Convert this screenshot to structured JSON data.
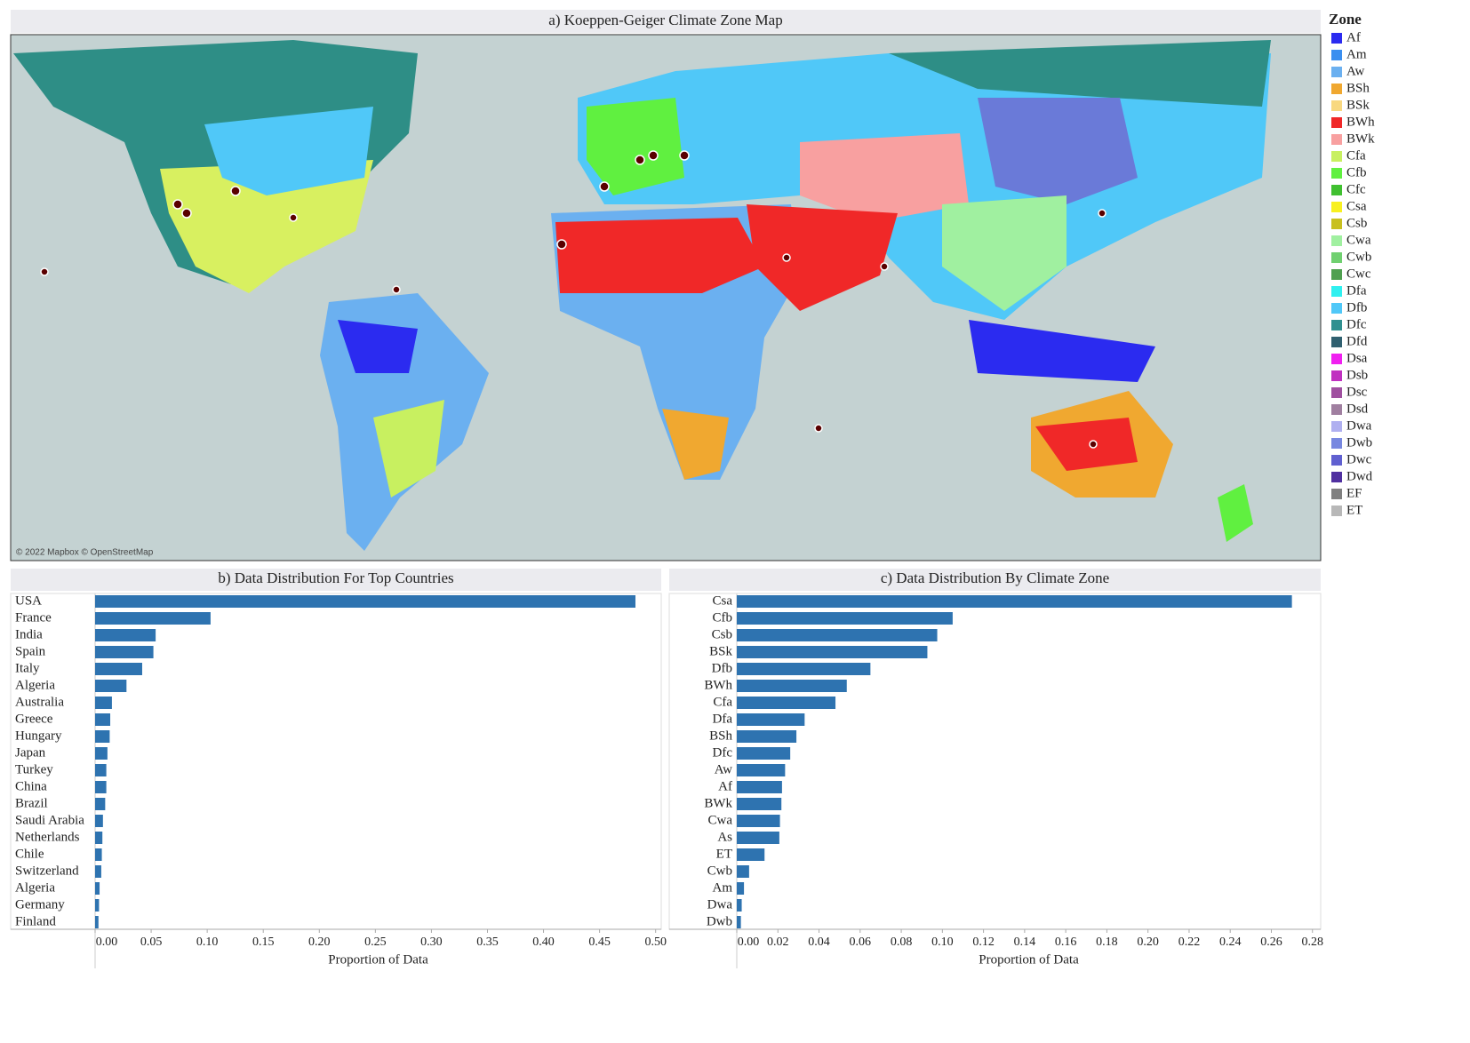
{
  "map": {
    "title": "a) Koeppen-Geiger Climate Zone Map",
    "attribution": "© 2022 Mapbox © OpenStreetMap",
    "legend_title": "Zone",
    "legend": [
      {
        "name": "Af",
        "color": "#2b2bf0"
      },
      {
        "name": "Am",
        "color": "#3b8ff0"
      },
      {
        "name": "Aw",
        "color": "#6bb0f0"
      },
      {
        "name": "BSh",
        "color": "#f0a830"
      },
      {
        "name": "BSk",
        "color": "#f8d880"
      },
      {
        "name": "BWh",
        "color": "#f02828"
      },
      {
        "name": "BWk",
        "color": "#f8a0a0"
      },
      {
        "name": "Cfa",
        "color": "#c8f060"
      },
      {
        "name": "Cfb",
        "color": "#60f040"
      },
      {
        "name": "Cfc",
        "color": "#40c030"
      },
      {
        "name": "Csa",
        "color": "#f8f020"
      },
      {
        "name": "Csb",
        "color": "#c8c020"
      },
      {
        "name": "Cwa",
        "color": "#a0f0a0"
      },
      {
        "name": "Cwb",
        "color": "#70d070"
      },
      {
        "name": "Cwc",
        "color": "#50a050"
      },
      {
        "name": "Dfa",
        "color": "#30f0f0"
      },
      {
        "name": "Dfb",
        "color": "#50c8f8"
      },
      {
        "name": "Dfc",
        "color": "#309090"
      },
      {
        "name": "Dfd",
        "color": "#306070"
      },
      {
        "name": "Dsa",
        "color": "#f020f0"
      },
      {
        "name": "Dsb",
        "color": "#c030c0"
      },
      {
        "name": "Dsc",
        "color": "#a050a0"
      },
      {
        "name": "Dsd",
        "color": "#a07fa0"
      },
      {
        "name": "Dwa",
        "color": "#b0b0f0"
      },
      {
        "name": "Dwb",
        "color": "#7888e0"
      },
      {
        "name": "Dwc",
        "color": "#6060d0"
      },
      {
        "name": "Dwd",
        "color": "#5030a0"
      },
      {
        "name": "EF",
        "color": "#808080"
      },
      {
        "name": "ET",
        "color": "#b8b8b8"
      }
    ]
  },
  "chart_data": [
    {
      "type": "hbar",
      "title": "b) Data Distribution For Top Countries",
      "x_label": "Proportion of Data",
      "color": "#2e73b0",
      "label_align": "left",
      "categories": [
        "USA",
        "France",
        "India",
        "Spain",
        "Italy",
        "Algeria",
        "Australia",
        "Greece",
        "Hungary",
        "Japan",
        "Turkey",
        "China",
        "Brazil",
        "Saudi Arabia",
        "Netherlands",
        "Chile",
        "Switzerland",
        "Algeria",
        "Germany",
        "Finland"
      ],
      "values": [
        0.482,
        0.103,
        0.054,
        0.052,
        0.042,
        0.028,
        0.015,
        0.0135,
        0.013,
        0.011,
        0.01,
        0.01,
        0.009,
        0.007,
        0.0065,
        0.006,
        0.0055,
        0.004,
        0.0035,
        0.003
      ],
      "xlim": [
        0,
        0.505
      ],
      "xticks": [
        {
          "value": 0,
          "label": "0.00"
        },
        {
          "value": 0.05,
          "label": "0.05"
        },
        {
          "value": 0.1,
          "label": "0.10"
        },
        {
          "value": 0.15,
          "label": "0.15"
        },
        {
          "value": 0.2,
          "label": "0.20"
        },
        {
          "value": 0.25,
          "label": "0.25"
        },
        {
          "value": 0.3,
          "label": "0.30"
        },
        {
          "value": 0.35,
          "label": "0.35"
        },
        {
          "value": 0.4,
          "label": "0.40"
        },
        {
          "value": 0.45,
          "label": "0.45"
        },
        {
          "value": 0.5,
          "label": "0.50"
        }
      ]
    },
    {
      "type": "hbar",
      "title": "c) Data Distribution By Climate Zone",
      "x_label": "Proportion of Data",
      "color": "#2e73b0",
      "label_align": "right",
      "categories": [
        "Csa",
        "Cfb",
        "Csb",
        "BSk",
        "Dfb",
        "BWh",
        "Cfa",
        "Dfa",
        "BSh",
        "Dfc",
        "Aw",
        "Af",
        "BWk",
        "Cwa",
        "As",
        "ET",
        "Cwb",
        "Am",
        "Dwa",
        "Dwb"
      ],
      "values": [
        0.27,
        0.105,
        0.0975,
        0.0927,
        0.065,
        0.0535,
        0.048,
        0.033,
        0.029,
        0.026,
        0.0235,
        0.022,
        0.0217,
        0.021,
        0.0207,
        0.0135,
        0.006,
        0.0035,
        0.0024,
        0.002
      ],
      "xlim": [
        0,
        0.284
      ],
      "xticks": [
        {
          "value": 0,
          "label": "0.00"
        },
        {
          "value": 0.02,
          "label": "0.02"
        },
        {
          "value": 0.04,
          "label": "0.04"
        },
        {
          "value": 0.06,
          "label": "0.06"
        },
        {
          "value": 0.08,
          "label": "0.08"
        },
        {
          "value": 0.1,
          "label": "0.10"
        },
        {
          "value": 0.12,
          "label": "0.12"
        },
        {
          "value": 0.14,
          "label": "0.14"
        },
        {
          "value": 0.16,
          "label": "0.16"
        },
        {
          "value": 0.18,
          "label": "0.18"
        },
        {
          "value": 0.2,
          "label": "0.20"
        },
        {
          "value": 0.22,
          "label": "0.22"
        },
        {
          "value": 0.24,
          "label": "0.24"
        },
        {
          "value": 0.26,
          "label": "0.26"
        },
        {
          "value": 0.28,
          "label": "0.28"
        }
      ]
    }
  ]
}
